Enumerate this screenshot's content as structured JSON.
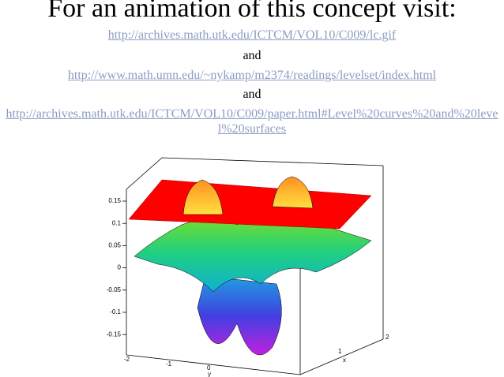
{
  "title": "For an animation of this concept visit:",
  "links": [
    "http://archives.math.utk.edu/ICTCM/VOL10/C009/lc.gif",
    "http://www.math.umn.edu/~nykamp/m2374/readings/levelset/index.html",
    "http://archives.math.utk.edu/ICTCM/VOL10/C009/paper.html#Level%20curves%20and%20level%20surfaces"
  ],
  "connectors": [
    "and",
    "and"
  ],
  "figure": {
    "z_ticks": [
      "0.15",
      "0.1",
      "0.05",
      "0",
      "-0.05",
      "-0.1",
      "-0.15"
    ],
    "y_ticks": [
      "-2",
      "-1",
      "0"
    ],
    "y_label": "y",
    "x_ticks": [
      "2",
      "1"
    ],
    "x_label": "x"
  }
}
